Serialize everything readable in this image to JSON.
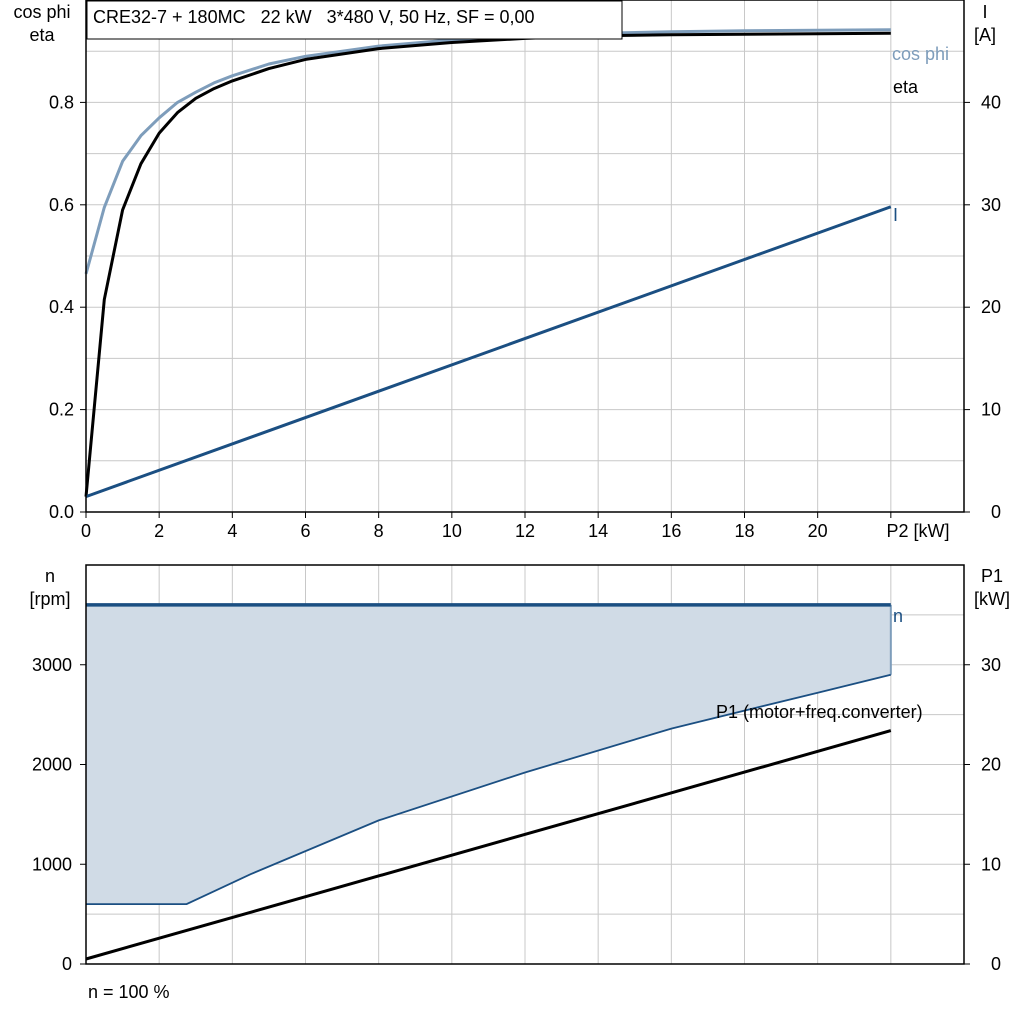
{
  "colors": {
    "cos_phi": "#7e9dbb",
    "eta": "#000000",
    "current": "#1b4f82",
    "speed": "#1b4f82",
    "speed_band": "#d0dbe6",
    "p1": "#000000",
    "grid": "#c8c8c8"
  },
  "chart_data": [
    {
      "type": "line",
      "title": "CRE32-7 + 180MC   22 kW   3*480 V, 50 Hz, SF = 0,00",
      "xlabel": "P2 [kW]",
      "ylabel_left": [
        "cos phi",
        "eta"
      ],
      "ylabel_right": [
        "I",
        "[A]"
      ],
      "xlim": [
        0,
        24
      ],
      "ylim_left": [
        0,
        1
      ],
      "ylim_right": [
        0,
        50
      ],
      "x_ticks": [
        "0",
        "2",
        "4",
        "6",
        "8",
        "10",
        "12",
        "14",
        "16",
        "18",
        "20"
      ],
      "y_left_ticks": [
        "0.0",
        "0.2",
        "0.4",
        "0.6",
        "0.8"
      ],
      "y_right_ticks": [
        "0",
        "10",
        "20",
        "30",
        "40"
      ],
      "grid": true,
      "series": [
        {
          "name": "cos phi",
          "axis": "left",
          "x": [
            0,
            0.5,
            1,
            1.5,
            2,
            2.5,
            3,
            3.5,
            4,
            5,
            6,
            8,
            10,
            12,
            14,
            16,
            18,
            20,
            22
          ],
          "y": [
            0.465,
            0.595,
            0.685,
            0.735,
            0.77,
            0.8,
            0.82,
            0.838,
            0.852,
            0.875,
            0.89,
            0.91,
            0.922,
            0.93,
            0.935,
            0.938,
            0.94,
            0.941,
            0.942
          ]
        },
        {
          "name": "eta",
          "axis": "left",
          "x": [
            0,
            0.5,
            1,
            1.5,
            2,
            2.5,
            3,
            3.5,
            4,
            5,
            6,
            8,
            10,
            12,
            14,
            16,
            18,
            20,
            22
          ],
          "y": [
            0.03,
            0.415,
            0.59,
            0.68,
            0.74,
            0.78,
            0.808,
            0.827,
            0.842,
            0.866,
            0.884,
            0.905,
            0.917,
            0.925,
            0.93,
            0.932,
            0.933,
            0.934,
            0.935
          ]
        },
        {
          "name": "I",
          "axis": "right",
          "x": [
            0,
            22
          ],
          "y": [
            1.5,
            29.8
          ]
        }
      ]
    },
    {
      "type": "area",
      "title": "",
      "xlabel": "",
      "ylabel_left": [
        "n",
        "[rpm]"
      ],
      "ylabel_right": [
        "P1",
        "[kW]"
      ],
      "xlim": [
        0,
        24
      ],
      "ylim_left": [
        0,
        4000
      ],
      "ylim_right": [
        0,
        40
      ],
      "y_left_ticks": [
        "0",
        "1000",
        "2000",
        "3000"
      ],
      "y_right_ticks": [
        "0",
        "10",
        "20",
        "30"
      ],
      "grid": true,
      "note": "n = 100 %",
      "series": [
        {
          "name": "n",
          "axis": "left",
          "x": [
            0,
            22
          ],
          "y": [
            3600,
            3600
          ]
        },
        {
          "name": "",
          "axis": "left",
          "x": [
            0,
            2.75,
            4.5,
            8,
            12,
            16,
            20,
            22
          ],
          "y": [
            600,
            600,
            900,
            1440,
            1920,
            2360,
            2720,
            2900
          ]
        },
        {
          "name": "P1 (motor+freq.converter)",
          "axis": "right",
          "x": [
            0,
            22
          ],
          "y": [
            0.5,
            23.4
          ]
        }
      ]
    }
  ]
}
